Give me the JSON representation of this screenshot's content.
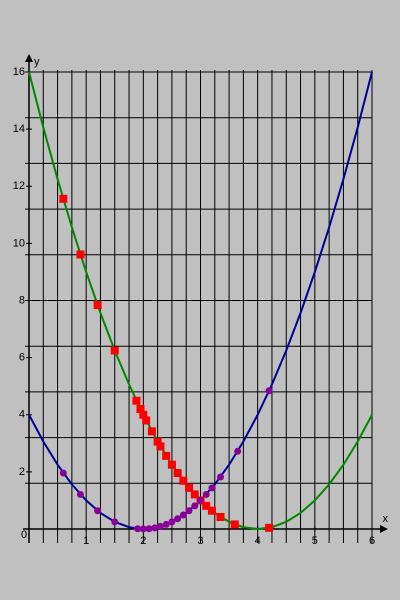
{
  "chart_data": {
    "type": "line",
    "xlabel": "x",
    "ylabel": "y",
    "xlim": [
      0,
      6
    ],
    "ylim": [
      0,
      16
    ],
    "xticks": [
      0,
      1,
      2,
      3,
      4,
      5,
      6
    ],
    "yticks": [
      2,
      4,
      6,
      8,
      10,
      12,
      14,
      16
    ],
    "x_grid": [
      0,
      0.25,
      0.5,
      0.75,
      1,
      1.25,
      1.5,
      1.75,
      2,
      2.25,
      2.5,
      2.75,
      3,
      3.25,
      3.5,
      3.75,
      4,
      4.25,
      4.5,
      4.75,
      5,
      5.25,
      5.5,
      5.75,
      6
    ],
    "y_grid": [
      0,
      1.6,
      3.2,
      4.8,
      6.4,
      8,
      9.6,
      11.2,
      12.8,
      14.4,
      16
    ],
    "background": "#c0c0c0",
    "series": [
      {
        "color": "#000099",
        "marker": "none",
        "x": [
          0,
          0.25,
          0.5,
          0.75,
          1,
          1.25,
          1.5,
          1.75,
          2,
          2.25,
          2.5,
          2.75,
          3,
          3.25,
          3.5,
          3.75,
          4,
          4.25,
          4.5,
          4.75,
          5,
          5.25,
          5.5,
          5.75,
          6
        ],
        "values": [
          4,
          3.0625,
          2.25,
          1.5625,
          1,
          0.5625,
          0.25,
          0.0625,
          0,
          0.0625,
          0.25,
          0.5625,
          1,
          1.5625,
          2.25,
          3.0625,
          4,
          5.0625,
          6.25,
          7.5625,
          9,
          10.5625,
          12.25,
          14.0625,
          16
        ]
      },
      {
        "color": "#008800",
        "marker": "none",
        "x": [
          0,
          0.25,
          0.5,
          0.75,
          1,
          1.25,
          1.5,
          1.75,
          2,
          2.25,
          2.5,
          2.75,
          3,
          3.25,
          3.5,
          3.75,
          4,
          4.25,
          4.5,
          4.75,
          5,
          5.25,
          5.5,
          5.75,
          6
        ],
        "values": [
          16,
          14.0625,
          12.25,
          10.5625,
          9,
          7.5625,
          6.25,
          5.0625,
          4,
          3.0625,
          2.25,
          1.5625,
          1,
          0.5625,
          0.25,
          0.0625,
          0,
          0.0625,
          0.25,
          0.5625,
          1,
          1.5625,
          2.25,
          3.0625,
          4
        ]
      },
      {
        "color": "#ff0000",
        "marker": "square",
        "x": [
          0.6,
          0.9,
          1.2,
          1.5,
          1.88,
          1.95,
          2.0,
          2.05,
          2.15,
          2.25,
          2.3,
          2.4,
          2.5,
          2.6,
          2.7,
          2.8,
          2.9,
          3.0,
          3.1,
          3.2,
          3.35,
          3.6,
          4.2
        ],
        "values": [
          11.56,
          9.61,
          7.84,
          6.25,
          4.49,
          4.2,
          4,
          3.8,
          3.42,
          3.06,
          2.89,
          2.56,
          2.25,
          1.96,
          1.69,
          1.44,
          1.21,
          1,
          0.81,
          0.64,
          0.42,
          0.16,
          0.04
        ]
      },
      {
        "color": "#880099",
        "marker": "circle",
        "x": [
          0.6,
          0.9,
          1.2,
          1.5,
          1.9,
          2.0,
          2.1,
          2.2,
          2.3,
          2.4,
          2.5,
          2.6,
          2.7,
          2.8,
          2.9,
          3.0,
          3.1,
          3.2,
          3.35,
          3.65,
          4.2
        ],
        "values": [
          1.96,
          1.21,
          0.64,
          0.25,
          0.01,
          0,
          0.01,
          0.04,
          0.09,
          0.16,
          0.25,
          0.36,
          0.49,
          0.64,
          0.81,
          1,
          1.21,
          1.44,
          1.82,
          2.72,
          4.84
        ]
      }
    ]
  }
}
